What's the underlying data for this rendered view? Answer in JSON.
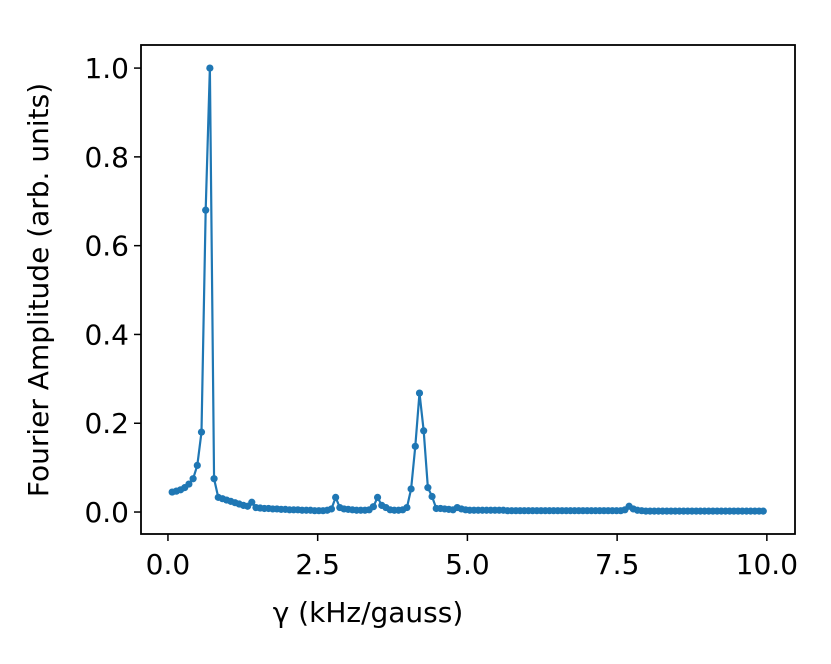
{
  "chart_data": {
    "type": "line",
    "xlabel": "γ (kHz/gauss)",
    "ylabel": "Fourier Amplitude (arb. units)",
    "x": [
      0.07,
      0.14,
      0.21,
      0.28,
      0.35,
      0.42,
      0.49,
      0.56,
      0.63,
      0.7,
      0.77,
      0.84,
      0.91,
      0.98,
      1.05,
      1.12,
      1.19,
      1.26,
      1.33,
      1.4,
      1.47,
      1.54,
      1.61,
      1.68,
      1.75,
      1.82,
      1.89,
      1.96,
      2.03,
      2.1,
      2.17,
      2.24,
      2.31,
      2.38,
      2.45,
      2.52,
      2.59,
      2.66,
      2.73,
      2.8,
      2.87,
      2.94,
      3.01,
      3.08,
      3.15,
      3.22,
      3.29,
      3.36,
      3.43,
      3.5,
      3.57,
      3.64,
      3.71,
      3.78,
      3.85,
      3.92,
      3.99,
      4.06,
      4.13,
      4.2,
      4.27,
      4.34,
      4.41,
      4.48,
      4.55,
      4.62,
      4.69,
      4.76,
      4.83,
      4.9,
      4.97,
      5.04,
      5.11,
      5.18,
      5.25,
      5.32,
      5.39,
      5.46,
      5.53,
      5.6,
      5.67,
      5.74,
      5.81,
      5.88,
      5.95,
      6.02,
      6.09,
      6.16,
      6.23,
      6.3,
      6.37,
      6.44,
      6.51,
      6.58,
      6.65,
      6.72,
      6.79,
      6.86,
      6.93,
      7.0,
      7.07,
      7.14,
      7.21,
      7.28,
      7.35,
      7.42,
      7.49,
      7.56,
      7.63,
      7.7,
      7.77,
      7.84,
      7.91,
      7.98,
      8.05,
      8.12,
      8.19,
      8.26,
      8.33,
      8.4,
      8.47,
      8.54,
      8.61,
      8.68,
      8.75,
      8.82,
      8.89,
      8.96,
      9.03,
      9.1,
      9.17,
      9.24,
      9.31,
      9.38,
      9.45,
      9.52,
      9.59,
      9.66,
      9.73,
      9.8,
      9.87,
      9.94
    ],
    "series": [
      {
        "color": "#1f77b4",
        "values": [
          0.045,
          0.047,
          0.05,
          0.055,
          0.063,
          0.075,
          0.105,
          0.18,
          0.68,
          1.0,
          0.075,
          0.033,
          0.03,
          0.027,
          0.024,
          0.021,
          0.018,
          0.015,
          0.013,
          0.022,
          0.01,
          0.009,
          0.008,
          0.008,
          0.007,
          0.007,
          0.006,
          0.006,
          0.005,
          0.005,
          0.005,
          0.004,
          0.004,
          0.004,
          0.003,
          0.003,
          0.003,
          0.004,
          0.007,
          0.033,
          0.01,
          0.007,
          0.006,
          0.005,
          0.004,
          0.004,
          0.004,
          0.005,
          0.012,
          0.033,
          0.015,
          0.01,
          0.005,
          0.004,
          0.004,
          0.005,
          0.01,
          0.052,
          0.148,
          0.268,
          0.183,
          0.055,
          0.035,
          0.008,
          0.008,
          0.007,
          0.006,
          0.005,
          0.01,
          0.007,
          0.005,
          0.004,
          0.004,
          0.004,
          0.004,
          0.004,
          0.004,
          0.004,
          0.004,
          0.004,
          0.003,
          0.003,
          0.003,
          0.003,
          0.003,
          0.003,
          0.003,
          0.003,
          0.003,
          0.003,
          0.003,
          0.003,
          0.003,
          0.003,
          0.003,
          0.003,
          0.003,
          0.003,
          0.003,
          0.003,
          0.003,
          0.003,
          0.003,
          0.003,
          0.003,
          0.003,
          0.003,
          0.003,
          0.005,
          0.013,
          0.007,
          0.004,
          0.003,
          0.002,
          0.002,
          0.002,
          0.002,
          0.002,
          0.002,
          0.002,
          0.002,
          0.002,
          0.002,
          0.002,
          0.002,
          0.002,
          0.002,
          0.002,
          0.002,
          0.002,
          0.002,
          0.002,
          0.002,
          0.002,
          0.002,
          0.002,
          0.002,
          0.002,
          0.002,
          0.002,
          0.002,
          0.002
        ]
      }
    ],
    "xlim": [
      -0.45,
      10.47
    ],
    "ylim": [
      -0.0495,
      1.052
    ],
    "xticks": [
      {
        "value": 0,
        "label": "0.0"
      },
      {
        "value": 2.5,
        "label": "2.5"
      },
      {
        "value": 5,
        "label": "5.0"
      },
      {
        "value": 7.5,
        "label": "7.5"
      },
      {
        "value": 10,
        "label": "10.0"
      }
    ],
    "yticks": [
      {
        "value": 0,
        "label": "0.0"
      },
      {
        "value": 0.2,
        "label": "0.2"
      },
      {
        "value": 0.4,
        "label": "0.4"
      },
      {
        "value": 0.6,
        "label": "0.6"
      },
      {
        "value": 0.8,
        "label": "0.8"
      },
      {
        "value": 1,
        "label": "1.0"
      }
    ]
  }
}
